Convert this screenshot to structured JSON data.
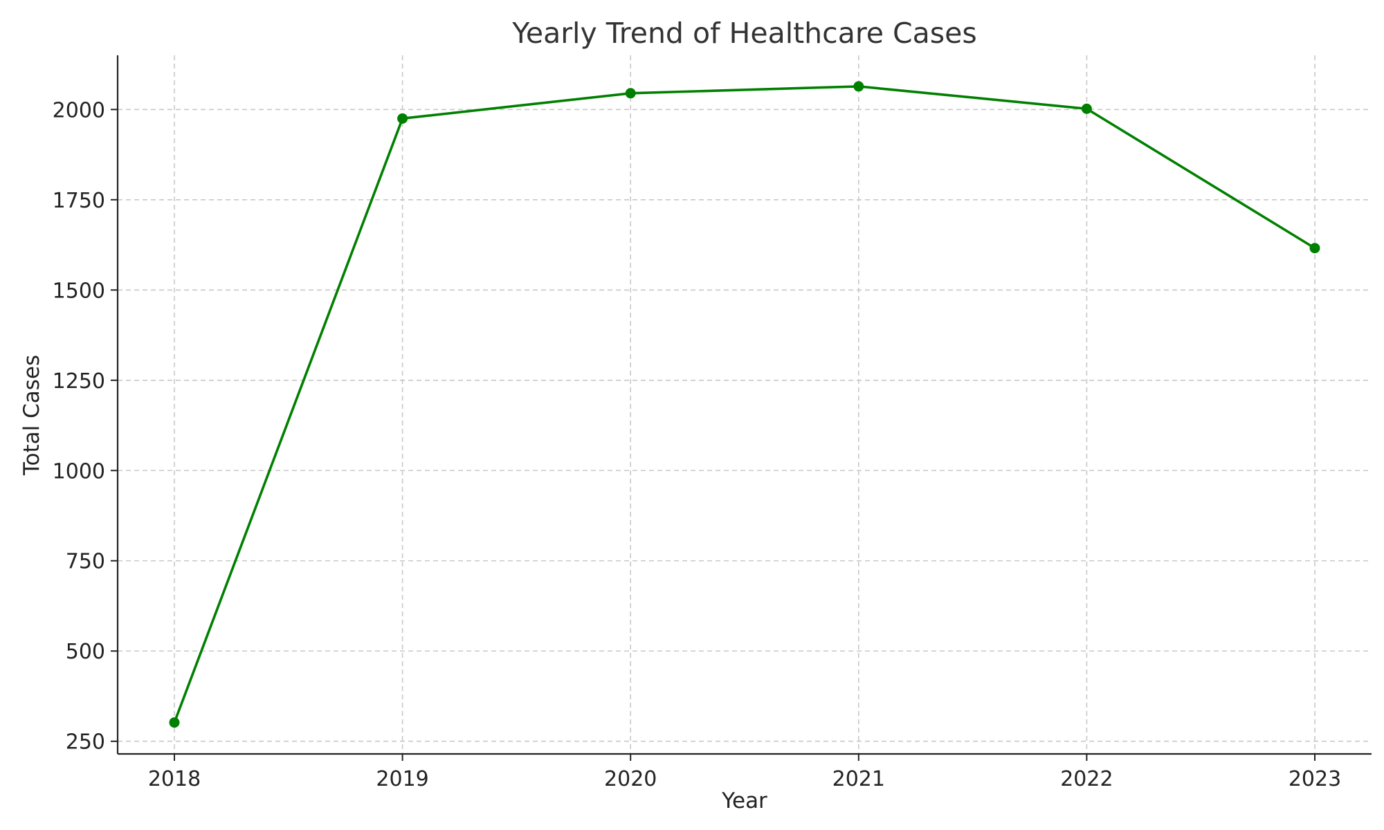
{
  "chart_data": {
    "type": "line",
    "title": "Yearly Trend of Healthcare Cases",
    "xlabel": "Year",
    "ylabel": "Total Cases",
    "categories": [
      "2018",
      "2019",
      "2020",
      "2021",
      "2022",
      "2023"
    ],
    "series": [
      {
        "values": [
          302,
          1975,
          2045,
          2064,
          2002,
          1616
        ],
        "color": "#008000",
        "marker": "circle"
      }
    ],
    "yticks": [
      250,
      500,
      750,
      1000,
      1250,
      1500,
      1750,
      2000
    ],
    "ylim": [
      215,
      2150
    ],
    "grid": true,
    "legend": "none"
  }
}
